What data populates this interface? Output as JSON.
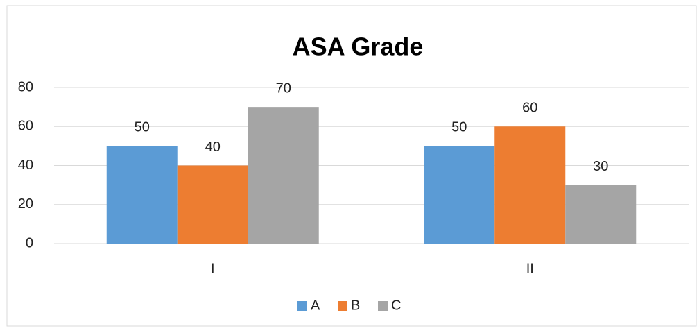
{
  "chart_data": {
    "type": "bar",
    "title": "ASA Grade",
    "categories": [
      "I",
      "II"
    ],
    "series": [
      {
        "name": "A",
        "color": "#5b9bd5",
        "values": [
          50,
          50
        ]
      },
      {
        "name": "B",
        "color": "#ed7d31",
        "values": [
          40,
          60
        ]
      },
      {
        "name": "C",
        "color": "#a5a5a5",
        "values": [
          70,
          30
        ]
      }
    ],
    "ylim": [
      0,
      80
    ],
    "yticks": [
      0,
      20,
      40,
      60,
      80
    ],
    "grid": true,
    "legend": "bottom",
    "data_labels": true
  }
}
